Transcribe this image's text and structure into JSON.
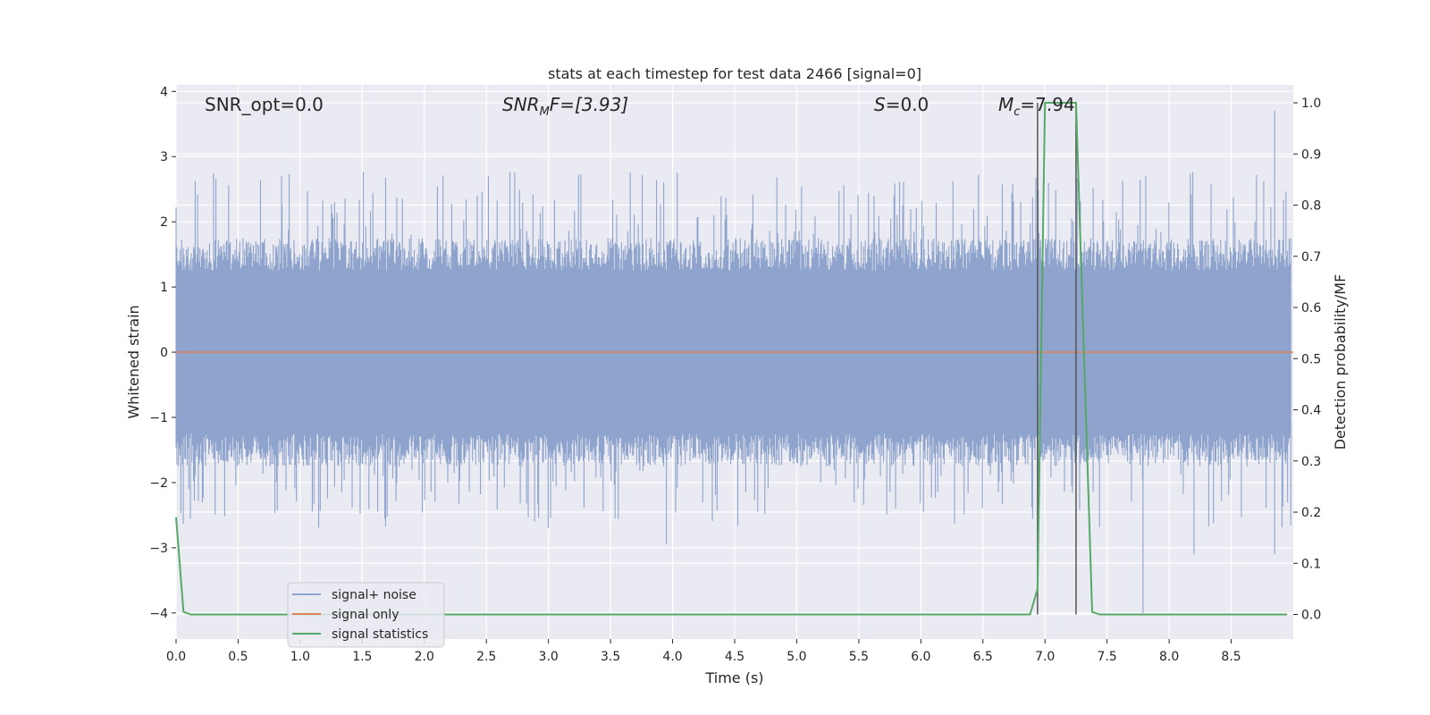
{
  "chart_data": {
    "type": "line",
    "title": "stats at each timestep for test data 2466 [signal=0]",
    "xlabel": "Time (s)",
    "ylabel_left": "Whitened strain",
    "ylabel_right": "Detection probability/MF",
    "xlim": [
      0.0,
      9.0
    ],
    "ylim_left": [
      -4.4,
      4.1
    ],
    "ylim_right": [
      -0.048,
      1.035
    ],
    "x_ticks": [
      "0.0",
      "0.5",
      "1.0",
      "1.5",
      "2.0",
      "2.5",
      "3.0",
      "3.5",
      "4.0",
      "4.5",
      "5.0",
      "5.5",
      "6.0",
      "6.5",
      "7.0",
      "7.5",
      "8.0",
      "8.5"
    ],
    "y_ticks_left": [
      "−4",
      "−3",
      "−2",
      "−1",
      "0",
      "1",
      "2",
      "3",
      "4"
    ],
    "y_ticks_right": [
      "0.0",
      "0.1",
      "0.2",
      "0.3",
      "0.4",
      "0.5",
      "0.6",
      "0.7",
      "0.8",
      "0.9",
      "1.0"
    ],
    "grid": true,
    "annotations": {
      "snr_opt": "SNR_opt=0.0",
      "snr_mf_base": "SNR",
      "snr_mf_sub": "M",
      "snr_mf_rest": "F=[3.93]",
      "s_base": "S",
      "s_rest": "=0.0",
      "mc_base": "M",
      "mc_sub": "c",
      "mc_rest": "=7.94"
    },
    "series": [
      {
        "name": "signal+ noise",
        "color": "#8fa4cc",
        "description_values": {
          "envelope_min": -4.0,
          "envelope_max": 3.7,
          "typical_abs": 1.3
        }
      },
      {
        "name": "signal only",
        "color": "#dd8452",
        "x": [
          0.0,
          9.0
        ],
        "y": [
          0.0,
          0.0
        ]
      },
      {
        "name": "signal statistics",
        "color": "#55a868",
        "x": [
          0.0,
          0.06,
          0.12,
          6.88,
          6.94,
          7.0,
          7.25,
          7.38,
          7.44,
          8.95
        ],
        "y": [
          0.19,
          0.005,
          0.0,
          0.0,
          0.05,
          1.0,
          1.0,
          0.005,
          0.0,
          0.0
        ]
      }
    ],
    "vertical_lines_x": [
      6.94,
      7.25
    ],
    "legend": {
      "placement": "lower-left",
      "entries": [
        "signal+ noise",
        "signal only",
        "signal statistics"
      ]
    }
  }
}
